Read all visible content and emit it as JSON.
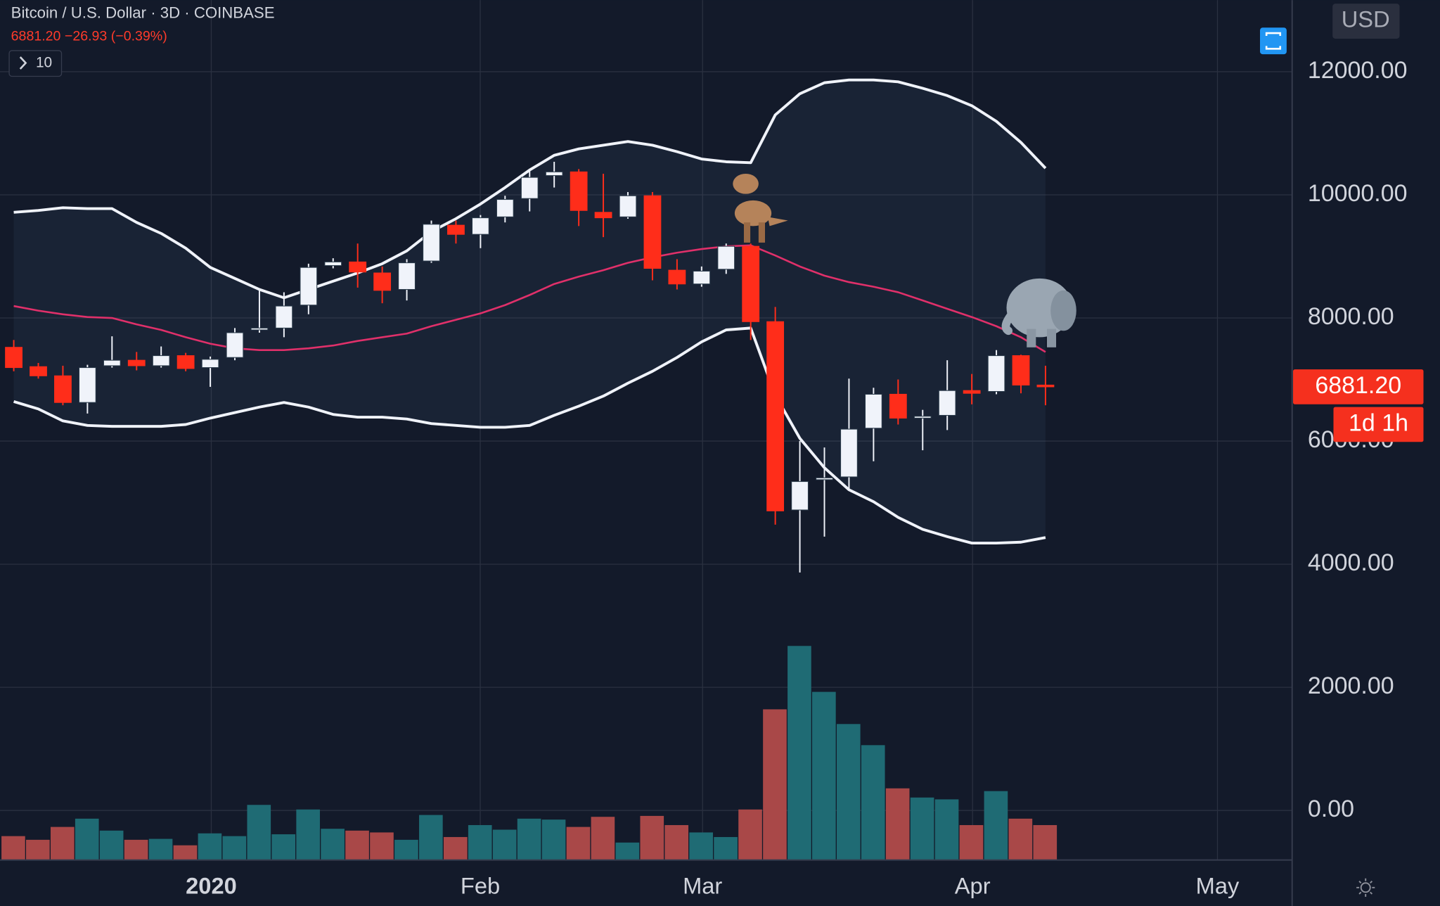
{
  "chart_data": {
    "type": "candlestick",
    "title": "Bitcoin / U.S. Dollar · 3D · COINBASE",
    "quote": "6881.20 −26.93 (−0.39%)",
    "indicator_count": 10,
    "currency": "USD",
    "countdown": "1d 1h",
    "last_price": {
      "value": 6881.2,
      "label": "6881.20"
    },
    "open": [
      7523,
      7209,
      7060,
      6627,
      7224,
      7313,
      7224,
      7388,
      7194,
      7358,
      7806,
      7836,
      8209,
      8851,
      8910,
      8731,
      8463,
      8925,
      9507,
      9358,
      9642,
      9940,
      10313,
      10373,
      9716,
      9642,
      9985,
      8776,
      8552,
      8791,
      9164,
      7940,
      4881,
      5373,
      5418,
      6209,
      6761,
      6373,
      6418,
      6821,
      6806,
      7388,
      6910
    ],
    "high": [
      7642,
      7269,
      7224,
      7239,
      7702,
      7448,
      7537,
      7433,
      7373,
      7836,
      8448,
      8418,
      8881,
      8970,
      9209,
      8836,
      8955,
      9582,
      9582,
      9672,
      9985,
      10388,
      10537,
      10418,
      10343,
      10045,
      10045,
      8955,
      8836,
      9209,
      9209,
      8179,
      6000,
      5896,
      7015,
      6866,
      7000,
      6507,
      7313,
      7090,
      7478,
      7403,
      7224
    ],
    "low": [
      7134,
      7015,
      6582,
      6448,
      7194,
      7149,
      7194,
      7134,
      6881,
      7313,
      7761,
      7687,
      8060,
      8806,
      8493,
      8239,
      8284,
      8896,
      9209,
      9134,
      9552,
      9731,
      10119,
      9493,
      9313,
      9612,
      8612,
      8463,
      8507,
      8716,
      7642,
      4642,
      3866,
      4448,
      5224,
      5672,
      6269,
      5851,
      6179,
      6597,
      6761,
      6776,
      6582
    ],
    "close": [
      7194,
      7060,
      6627,
      7194,
      7313,
      7224,
      7388,
      7179,
      7328,
      7761,
      7836,
      8194,
      8821,
      8910,
      8746,
      8448,
      8896,
      9522,
      9358,
      9627,
      9925,
      10284,
      10373,
      9746,
      9627,
      9985,
      8806,
      8552,
      8761,
      9164,
      7940,
      4866,
      5343,
      5403,
      6194,
      6761,
      6373,
      6403,
      6821,
      6776,
      7388,
      6910,
      6881.2
    ],
    "upper_band": [
      9716,
      9746,
      9791,
      9776,
      9776,
      9552,
      9373,
      9134,
      8821,
      8642,
      8463,
      8328,
      8463,
      8597,
      8731,
      8881,
      9090,
      9403,
      9612,
      9851,
      10119,
      10403,
      10642,
      10746,
      10806,
      10866,
      10806,
      10701,
      10582,
      10537,
      10522,
      11299,
      11642,
      11821,
      11866,
      11866,
      11836,
      11731,
      11612,
      11448,
      11194,
      10851,
      10433
    ],
    "middle_band": [
      8194,
      8119,
      8060,
      8015,
      8000,
      7896,
      7806,
      7687,
      7582,
      7507,
      7478,
      7478,
      7507,
      7552,
      7627,
      7687,
      7746,
      7866,
      7970,
      8075,
      8209,
      8373,
      8552,
      8672,
      8776,
      8896,
      8985,
      9060,
      9119,
      9164,
      9179,
      9015,
      8836,
      8687,
      8582,
      8507,
      8418,
      8284,
      8149,
      8015,
      7866,
      7687,
      7448
    ],
    "lower_band": [
      6642,
      6522,
      6328,
      6254,
      6239,
      6239,
      6239,
      6269,
      6373,
      6463,
      6552,
      6627,
      6552,
      6433,
      6388,
      6388,
      6358,
      6284,
      6254,
      6224,
      6224,
      6254,
      6418,
      6567,
      6731,
      6940,
      7134,
      7358,
      7612,
      7806,
      7836,
      6746,
      6045,
      5567,
      5209,
      5015,
      4761,
      4567,
      4448,
      4343,
      4343,
      4358,
      4433
    ],
    "volume": [
      26,
      22,
      36,
      45,
      32,
      22,
      23,
      16,
      29,
      26,
      60,
      28,
      55,
      34,
      32,
      30,
      22,
      49,
      25,
      38,
      33,
      45,
      44,
      36,
      47,
      19,
      48,
      38,
      30,
      25,
      55,
      164,
      233,
      183,
      148,
      125,
      78,
      68,
      66,
      38,
      75,
      45,
      38
    ],
    "vlim": [
      0,
      936
    ],
    "up_color": "#f0f3fa",
    "down_color": "#ff2d1a",
    "volume_up_color": "#1f6b74",
    "volume_down_color": "#a94848",
    "band_color": "#f0f3fa",
    "middle_band_color": "#e0306a",
    "ylim": [
      -805,
      13164
    ],
    "yticks": [
      {
        "value": 0,
        "label": "0.00"
      },
      {
        "value": 2000,
        "label": "2000.00"
      },
      {
        "value": 4000,
        "label": "4000.00"
      },
      {
        "value": 6000,
        "label": "6000.00"
      },
      {
        "value": 8000,
        "label": "8000.00"
      },
      {
        "value": 10000,
        "label": "10000.00"
      },
      {
        "value": 12000,
        "label": "12000.00"
      }
    ],
    "xlim": [
      -0.56,
      52.04
    ],
    "xticks": [
      {
        "value": 8.04,
        "label": "2020"
      },
      {
        "value": 18.99,
        "label": "Feb"
      },
      {
        "value": 28.04,
        "label": "Mar"
      },
      {
        "value": 39.03,
        "label": "Apr"
      },
      {
        "value": 49.0,
        "label": "May"
      }
    ],
    "grid": true
  }
}
